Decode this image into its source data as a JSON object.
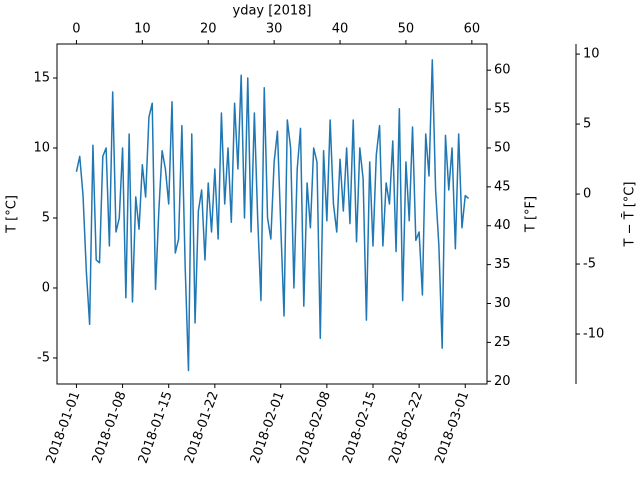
{
  "chart_data": {
    "type": "line",
    "x_label_top": "yday [2018]",
    "y_label": "T [°C]",
    "y2_label": "T [°F]",
    "y3_label": "T − T̄ [°C]",
    "x": [
      0,
      0.5,
      1,
      1.5,
      2,
      2.5,
      3,
      3.5,
      4,
      4.5,
      5,
      5.5,
      6,
      6.5,
      7,
      7.5,
      8,
      8.5,
      9,
      9.5,
      10,
      10.5,
      11,
      11.5,
      12,
      12.5,
      13,
      13.5,
      14,
      14.5,
      15,
      15.5,
      16,
      16.5,
      17,
      17.5,
      18,
      18.5,
      19,
      19.5,
      20,
      20.5,
      21,
      21.5,
      22,
      22.5,
      23,
      23.5,
      24,
      24.5,
      25,
      25.5,
      26,
      26.5,
      27,
      27.5,
      28,
      28.5,
      29,
      29.5,
      30,
      30.5,
      31,
      31.5,
      32,
      32.5,
      33,
      33.5,
      34,
      34.5,
      35,
      35.5,
      36,
      36.5,
      37,
      37.5,
      38,
      38.5,
      39,
      39.5,
      40,
      40.5,
      41,
      41.5,
      42,
      42.5,
      43,
      43.5,
      44,
      44.5,
      45,
      45.5,
      46,
      46.5,
      47,
      47.5,
      48,
      48.5,
      49,
      49.5,
      50,
      50.5,
      51,
      51.5,
      52,
      52.5,
      53,
      53.5,
      54,
      54.5,
      55,
      55.5,
      56,
      56.5,
      57,
      57.5,
      58,
      58.5,
      59,
      59.5
    ],
    "series": [
      {
        "color": "#1f77b4",
        "values": [
          8.3,
          9.4,
          6.6,
          1.2,
          -2.6,
          10.2,
          2,
          1.8,
          9.4,
          10,
          3,
          14,
          4,
          5,
          10,
          -0.7,
          11,
          -1,
          6.5,
          4.2,
          8.8,
          6.5,
          12.2,
          13.2,
          -0.1,
          5.5,
          9.8,
          8.5,
          6,
          13.3,
          2.5,
          3.5,
          11.6,
          1.5,
          -5.9,
          11,
          -2.5,
          5.5,
          7,
          2,
          7.5,
          4,
          8.5,
          3.5,
          12.5,
          6,
          10,
          4.7,
          13.2,
          8.5,
          15.2,
          5,
          15,
          4,
          12.5,
          5,
          -0.9,
          14.3,
          5,
          3.5,
          9,
          11.2,
          4.5,
          -2,
          12,
          10,
          0,
          8.5,
          11.4,
          -1.3,
          7.5,
          4.3,
          10,
          9,
          -3.6,
          9.8,
          4.8,
          12,
          6,
          4,
          9.2,
          5.5,
          10,
          4.6,
          12,
          3.3,
          10,
          7.8,
          -2.3,
          9,
          3,
          9.5,
          11.6,
          3,
          7.5,
          6,
          10.5,
          2.6,
          12.8,
          -0.9,
          9,
          4.8,
          11.5,
          3.4,
          4,
          -0.5,
          11,
          8,
          16.3,
          7,
          3,
          -4.3,
          10.9,
          7,
          10,
          2.8,
          11,
          4.3,
          6.6,
          6.4
        ]
      }
    ],
    "xlim": [
      -2.95,
      62.3
    ],
    "xticks": [
      {
        "value": 0,
        "label": "2018-01-01"
      },
      {
        "value": 7,
        "label": "2018-01-08"
      },
      {
        "value": 14,
        "label": "2018-01-15"
      },
      {
        "value": 21,
        "label": "2018-01-22"
      },
      {
        "value": 31,
        "label": "2018-02-01"
      },
      {
        "value": 38,
        "label": "2018-02-08"
      },
      {
        "value": 45,
        "label": "2018-02-15"
      },
      {
        "value": 52,
        "label": "2018-02-22"
      },
      {
        "value": 59,
        "label": "2018-03-01"
      }
    ],
    "x2ticks": [
      0,
      10,
      20,
      30,
      40,
      50,
      60
    ],
    "ylim": [
      -6.86,
      17.43
    ],
    "yticks": [
      -5,
      0,
      5,
      10,
      15
    ],
    "y2lim": [
      19.65,
      63.37
    ],
    "y2ticks": [
      20,
      25,
      30,
      35,
      40,
      45,
      50,
      55,
      60
    ],
    "y3lim": [
      -13.57,
      10.72
    ],
    "y3ticks": [
      -10,
      -5,
      0,
      5,
      10
    ]
  }
}
